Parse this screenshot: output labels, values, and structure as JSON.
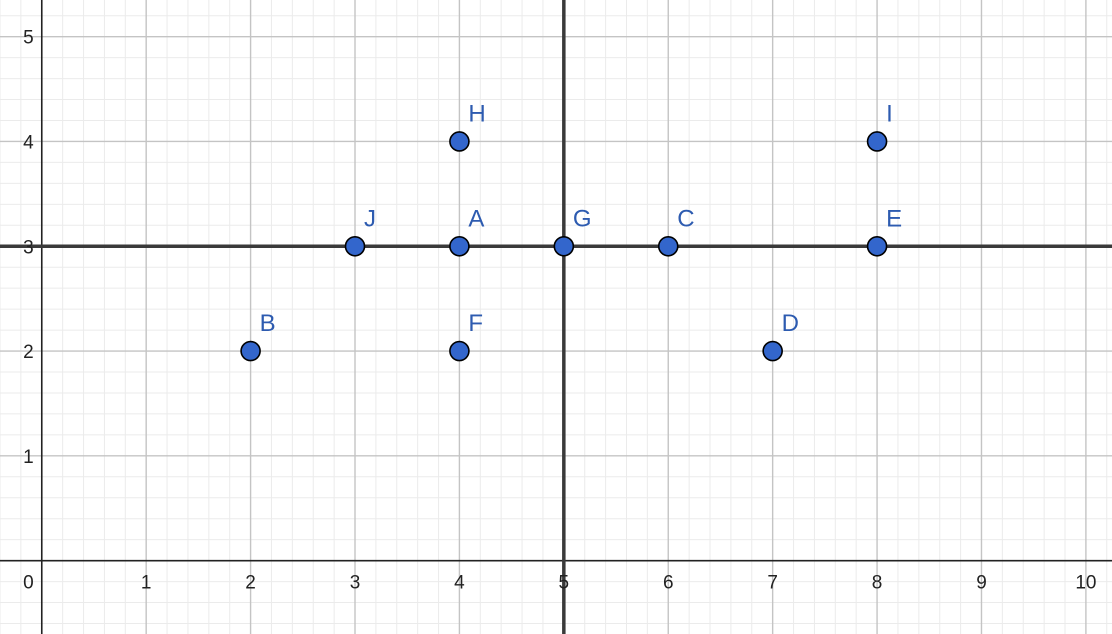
{
  "chart_data": {
    "type": "scatter",
    "title": "",
    "xlabel": "",
    "ylabel": "",
    "xlim": [
      -0.4,
      10.25
    ],
    "ylim": [
      -0.7,
      5.35
    ],
    "grid": true,
    "minor_grid_per_unit": 5,
    "x_ticks": [
      {
        "value": 0,
        "label": "0"
      },
      {
        "value": 1,
        "label": "1"
      },
      {
        "value": 2,
        "label": "2"
      },
      {
        "value": 3,
        "label": "3"
      },
      {
        "value": 4,
        "label": "4"
      },
      {
        "value": 5,
        "label": "5"
      },
      {
        "value": 6,
        "label": "6"
      },
      {
        "value": 7,
        "label": "7"
      },
      {
        "value": 8,
        "label": "8"
      },
      {
        "value": 9,
        "label": "9"
      },
      {
        "value": 10,
        "label": "10"
      }
    ],
    "y_ticks": [
      {
        "value": 1,
        "label": "1"
      },
      {
        "value": 2,
        "label": "2"
      },
      {
        "value": 3,
        "label": "3"
      },
      {
        "value": 4,
        "label": "4"
      },
      {
        "value": 5,
        "label": "5"
      }
    ],
    "reference_lines": [
      {
        "orientation": "vertical",
        "value": 5
      },
      {
        "orientation": "horizontal",
        "value": 3
      }
    ],
    "points": [
      {
        "label": "A",
        "x": 4,
        "y": 3
      },
      {
        "label": "B",
        "x": 2,
        "y": 2
      },
      {
        "label": "C",
        "x": 6,
        "y": 3
      },
      {
        "label": "D",
        "x": 7,
        "y": 2
      },
      {
        "label": "E",
        "x": 8,
        "y": 3
      },
      {
        "label": "F",
        "x": 4,
        "y": 2
      },
      {
        "label": "G",
        "x": 5,
        "y": 3
      },
      {
        "label": "H",
        "x": 4,
        "y": 4
      },
      {
        "label": "I",
        "x": 8,
        "y": 4
      },
      {
        "label": "J",
        "x": 3,
        "y": 3
      }
    ],
    "colors": {
      "point_fill": "#3366cc",
      "point_stroke": "#000000",
      "label": "#2d5bb0",
      "major_grid": "#c4c4c4",
      "minor_grid": "#ebebeb",
      "axis": "#222222",
      "reference_line": "#3a3a3a"
    }
  }
}
